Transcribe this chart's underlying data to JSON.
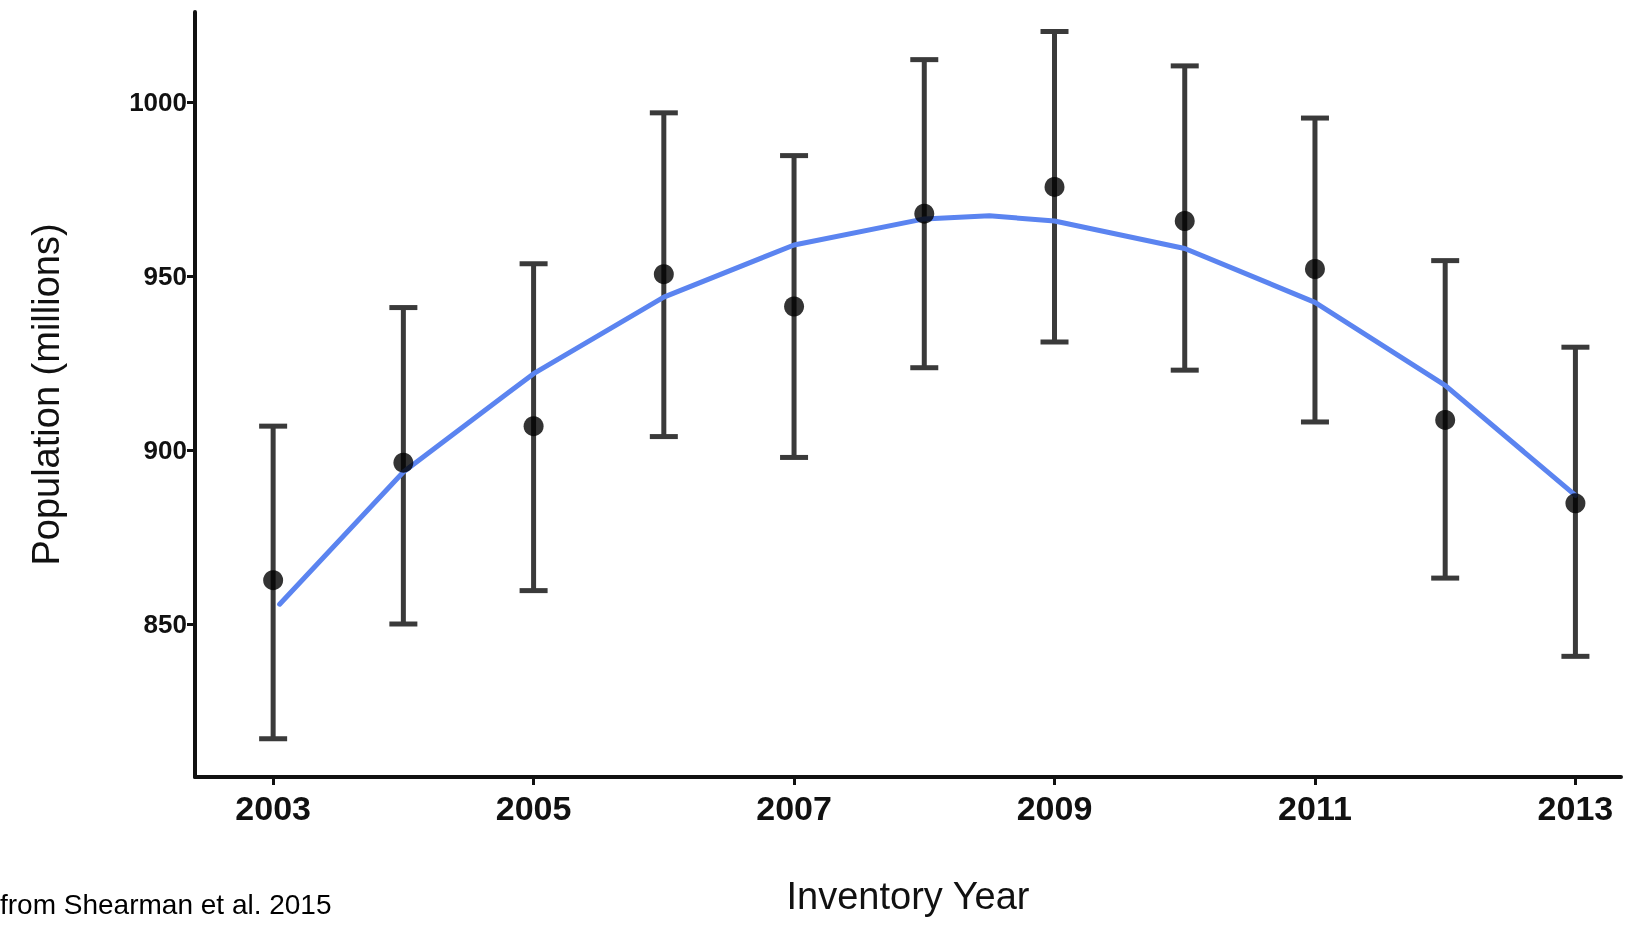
{
  "chart_data": {
    "type": "scatter",
    "xlabel": "Inventory Year",
    "ylabel": "Population (millions)",
    "annotations": [
      "from Shearman et al. 2015"
    ],
    "xlim": [
      2002.4,
      2013.35
    ],
    "xticks": [
      2003,
      2005,
      2007,
      2009,
      2011,
      2013
    ],
    "ylim": [
      806,
      1026
    ],
    "yticks": [
      850,
      900,
      950,
      1000
    ],
    "grid": false,
    "series": [
      {
        "marker": "circle",
        "color": "#000000",
        "x": [
          2003,
          2004,
          2005,
          2006,
          2007,
          2008,
          2009,
          2010,
          2011,
          2012,
          2013
        ],
        "values": [
          862.6,
          896.4,
          906.9,
          950.6,
          941.3,
          968,
          975.7,
          965.9,
          952.1,
          908.7,
          884.7
        ],
        "errors": [
          [
            817,
            906.9
          ],
          [
            850,
            941
          ],
          [
            859.6,
            953.6
          ],
          [
            903.9,
            997
          ],
          [
            897.9,
            984.7
          ],
          [
            923.7,
            1012.3
          ],
          [
            931.1,
            1020.4
          ],
          [
            923,
            1010.5
          ],
          [
            908.1,
            995.5
          ],
          [
            863.2,
            954.5
          ],
          [
            840.7,
            929.6
          ]
        ]
      },
      {
        "type": "line",
        "marker": "none",
        "color": "#5b84f0",
        "x": [
          2003.05,
          2004,
          2005,
          2006,
          2007,
          2008,
          2008.5,
          2009,
          2010,
          2011,
          2012,
          2013
        ],
        "values": [
          855.7,
          893.7,
          922,
          944,
          959,
          966.5,
          967.4,
          965.9,
          958,
          942.5,
          918.6,
          887
        ]
      }
    ]
  }
}
